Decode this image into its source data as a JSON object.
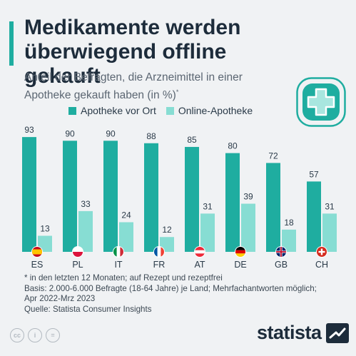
{
  "header": {
    "title": "Medikamente werden überwiegend offline gekauft",
    "subtitle": "Anteil der Befragten, die Arzneimittel in einer Apotheke gekauft haben (in %)",
    "subtitle_mark": "*"
  },
  "colors": {
    "accent": "#1fada0",
    "store": "#1fada0",
    "online": "#87ddd3",
    "background": "#f0f2f4"
  },
  "badge": {
    "icon": "pharmacy-cross-icon"
  },
  "legend": {
    "store_label": "Apotheke vor Ort",
    "online_label": "Online-Apotheke"
  },
  "chart_data": {
    "type": "bar",
    "categories": [
      "ES",
      "PL",
      "IT",
      "FR",
      "AT",
      "DE",
      "GB",
      "CH"
    ],
    "flag_icons": [
      "flag-es-icon",
      "flag-pl-icon",
      "flag-it-icon",
      "flag-fr-icon",
      "flag-at-icon",
      "flag-de-icon",
      "flag-gb-icon",
      "flag-ch-icon"
    ],
    "series": [
      {
        "name": "Apotheke vor Ort",
        "values": [
          93,
          90,
          90,
          88,
          85,
          80,
          72,
          57
        ],
        "color": "#1fada0"
      },
      {
        "name": "Online-Apotheke",
        "values": [
          13,
          33,
          24,
          12,
          31,
          39,
          18,
          31
        ],
        "color": "#87ddd3"
      }
    ],
    "ylim": [
      0,
      100
    ],
    "grid": false,
    "legend": "top"
  },
  "footnotes": {
    "note": "* in den letzten 12 Monaten; auf Rezept und rezeptfrei",
    "basis_line1": "Basis: 2.000-6.000 Befragte (18-64 Jahre) je Land; Mehrfachantworten möglich;",
    "basis_line2": "Apr 2022-Mrz 2023",
    "source": "Quelle: Statista Consumer Insights"
  },
  "license_icons": [
    "cc-icon",
    "by-icon",
    "nd-icon"
  ],
  "license_labels": [
    "cc",
    "i",
    "="
  ],
  "brand": {
    "name": "statista",
    "icon": "statista-logo-icon"
  }
}
